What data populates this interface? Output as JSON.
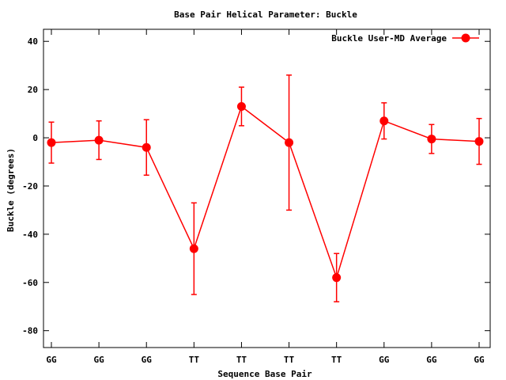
{
  "chart_data": {
    "type": "line",
    "title": "Base Pair Helical Parameter: Buckle",
    "xlabel": "Sequence Base Pair",
    "ylabel": "Buckle (degrees)",
    "categories": [
      "GG",
      "GG",
      "GG",
      "TT",
      "TT",
      "TT",
      "TT",
      "GG",
      "GG",
      "GG"
    ],
    "ylim": [
      -87,
      45
    ],
    "yticks": [
      40,
      20,
      0,
      -20,
      -40,
      -60,
      -80
    ],
    "grid": false,
    "legend_position": "top-right",
    "series": [
      {
        "name": "Buckle User-MD Average",
        "color": "#ff0000",
        "marker": "circle",
        "values": [
          -2,
          -1,
          -4,
          -46,
          13,
          -2,
          -58,
          7,
          -0.5,
          -1.5
        ],
        "error_low": [
          -10.5,
          -9,
          -15.5,
          -65,
          5,
          -30,
          -68,
          -0.5,
          -6.5,
          -11
        ],
        "error_high": [
          6.5,
          7,
          7.5,
          -27,
          21,
          26,
          -48,
          14.5,
          5.5,
          8
        ]
      }
    ]
  }
}
